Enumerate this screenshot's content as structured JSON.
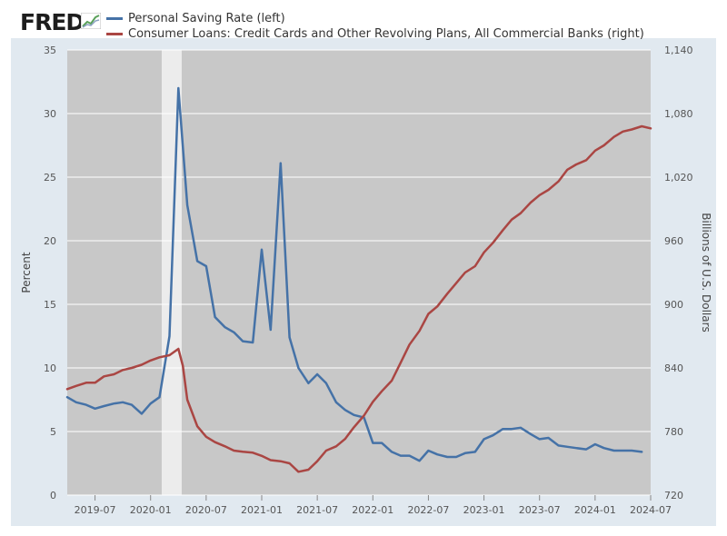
{
  "header": {
    "logo_text": "FRED"
  },
  "chart_data": {
    "type": "line",
    "title": "",
    "xlabel": "",
    "x_ticks": [
      "2019-07",
      "2020-01",
      "2020-07",
      "2021-01",
      "2021-07",
      "2022-01",
      "2022-07",
      "2023-01",
      "2023-07",
      "2024-01",
      "2024-07"
    ],
    "x_range": [
      2019.25,
      2024.5
    ],
    "recession_band": [
      2020.1,
      2020.28
    ],
    "left_axis": {
      "label": "Percent",
      "ylim": [
        0,
        35
      ],
      "ticks": [
        0,
        5,
        10,
        15,
        20,
        25,
        30,
        35
      ],
      "tick_labels": [
        "0",
        "5",
        "10",
        "15",
        "20",
        "25",
        "30",
        "35"
      ]
    },
    "right_axis": {
      "label": "Billions of U.S. Dollars",
      "ylim": [
        720,
        1140
      ],
      "ticks": [
        720,
        780,
        840,
        900,
        960,
        1020,
        1080,
        1140
      ],
      "tick_labels": [
        "720",
        "780",
        "840",
        "900",
        "960",
        "1,020",
        "1,080",
        "1,140"
      ]
    },
    "series": [
      {
        "name": "Personal Saving Rate (left)",
        "axis": "left",
        "color": "#4572a7",
        "x": [
          2019.25,
          2019.33,
          2019.42,
          2019.5,
          2019.58,
          2019.67,
          2019.75,
          2019.83,
          2019.92,
          2020.0,
          2020.08,
          2020.17,
          2020.25,
          2020.33,
          2020.42,
          2020.5,
          2020.58,
          2020.67,
          2020.75,
          2020.83,
          2020.92,
          2021.0,
          2021.08,
          2021.17,
          2021.25,
          2021.33,
          2021.42,
          2021.5,
          2021.58,
          2021.67,
          2021.75,
          2021.83,
          2021.92,
          2022.0,
          2022.08,
          2022.17,
          2022.25,
          2022.33,
          2022.42,
          2022.5,
          2022.58,
          2022.67,
          2022.75,
          2022.83,
          2022.92,
          2023.0,
          2023.08,
          2023.17,
          2023.25,
          2023.33,
          2023.42,
          2023.5,
          2023.58,
          2023.67,
          2023.75,
          2023.83,
          2023.92,
          2024.0,
          2024.08,
          2024.17,
          2024.25,
          2024.33,
          2024.42
        ],
        "y": [
          7.7,
          7.3,
          7.1,
          6.8,
          7.0,
          7.2,
          7.3,
          7.1,
          6.4,
          7.2,
          7.7,
          12.5,
          32.0,
          22.8,
          18.4,
          18.0,
          14.0,
          13.2,
          12.8,
          12.1,
          12.0,
          19.3,
          13.0,
          26.1,
          12.4,
          10.0,
          8.8,
          9.5,
          8.8,
          7.3,
          6.7,
          6.3,
          6.1,
          4.1,
          4.1,
          3.4,
          3.1,
          3.1,
          2.7,
          3.5,
          3.2,
          3.0,
          3.0,
          3.3,
          3.4,
          4.4,
          4.7,
          5.2,
          5.2,
          5.3,
          4.8,
          4.4,
          4.5,
          3.9,
          3.8,
          3.7,
          3.6,
          4.0,
          3.7,
          3.5,
          3.5,
          3.5,
          3.4
        ]
      },
      {
        "name": "Consumer Loans: Credit Cards and Other Revolving Plans, All Commercial Banks (right)",
        "axis": "right",
        "color": "#aa4643",
        "x": [
          2019.25,
          2019.33,
          2019.42,
          2019.5,
          2019.58,
          2019.67,
          2019.75,
          2019.83,
          2019.92,
          2020.0,
          2020.08,
          2020.17,
          2020.25,
          2020.29,
          2020.33,
          2020.42,
          2020.5,
          2020.58,
          2020.67,
          2020.75,
          2020.83,
          2020.92,
          2021.0,
          2021.08,
          2021.17,
          2021.25,
          2021.33,
          2021.42,
          2021.5,
          2021.58,
          2021.67,
          2021.75,
          2021.83,
          2021.92,
          2022.0,
          2022.08,
          2022.17,
          2022.25,
          2022.33,
          2022.42,
          2022.5,
          2022.58,
          2022.67,
          2022.75,
          2022.83,
          2022.92,
          2023.0,
          2023.08,
          2023.17,
          2023.25,
          2023.33,
          2023.42,
          2023.5,
          2023.58,
          2023.67,
          2023.75,
          2023.83,
          2023.92,
          2024.0,
          2024.08,
          2024.17,
          2024.25,
          2024.33,
          2024.42,
          2024.5
        ],
        "y": [
          820,
          823,
          826,
          826,
          832,
          834,
          838,
          840,
          843,
          847,
          850,
          852,
          858,
          842,
          810,
          785,
          775,
          770,
          766,
          762,
          761,
          760,
          757,
          753,
          752,
          750,
          742,
          744,
          752,
          762,
          766,
          773,
          784,
          795,
          808,
          818,
          828,
          845,
          862,
          875,
          891,
          898,
          910,
          920,
          930,
          936,
          949,
          958,
          970,
          980,
          986,
          996,
          1003,
          1008,
          1016,
          1027,
          1032,
          1036,
          1045,
          1050,
          1058,
          1063,
          1065,
          1068,
          1066
        ]
      }
    ]
  }
}
